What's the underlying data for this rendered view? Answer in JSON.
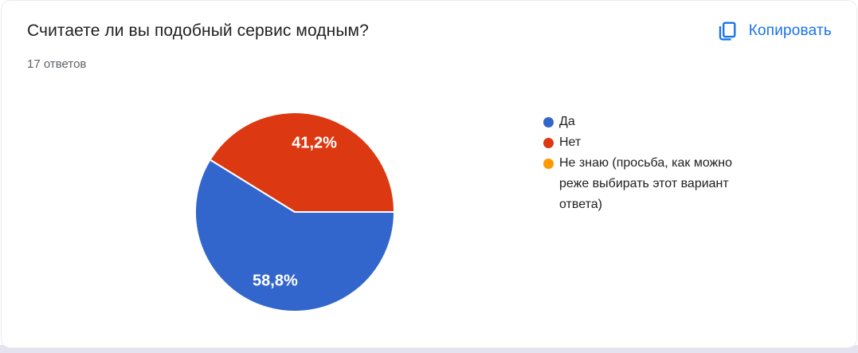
{
  "card": {
    "title": "Считаете ли вы подобный сервис модным?",
    "responses_label": "17 ответов",
    "copy_button": {
      "label": "Копировать",
      "color": "#1a73e8"
    }
  },
  "chart_data": {
    "type": "pie",
    "title": "Считаете ли вы подобный сервис модным?",
    "responses_count": 17,
    "legend_position": "right",
    "start_angle_deg": 0,
    "direction": "clockwise",
    "slice_label_color": "#ffffff",
    "series": [
      {
        "label": "Да",
        "percent": 58.8,
        "percent_label": "58,8%",
        "color": "#3366cc"
      },
      {
        "label": "Нет",
        "percent": 41.2,
        "percent_label": "41,2%",
        "color": "#dc3912"
      },
      {
        "label": "Не знаю (просьба, как можно реже выбирать этот вариант ответа)",
        "percent": 0,
        "percent_label": "",
        "color": "#ff9900"
      }
    ]
  },
  "colors": {
    "card_bg": "#ffffff",
    "page_strip": "#e4e3ef",
    "title_text": "#202124",
    "muted_text": "#5f6368",
    "legend_text": "#212121"
  }
}
